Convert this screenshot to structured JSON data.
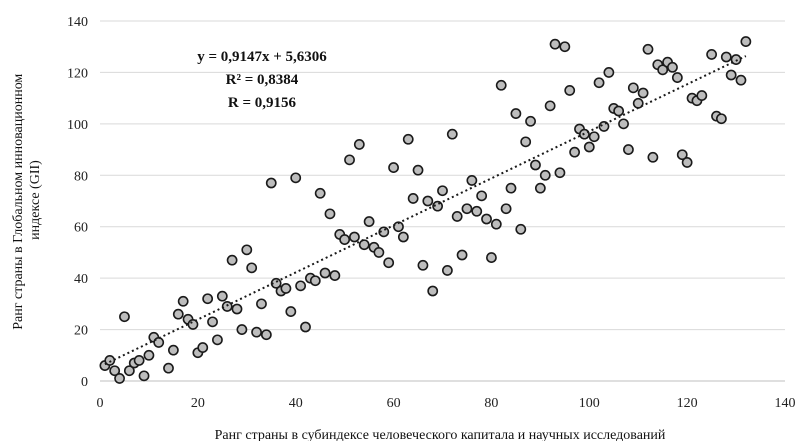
{
  "chart_data": {
    "type": "scatter",
    "xlabel": "Ранг страны в субиндексе человеческого капитала и научных исследований",
    "ylabel": "Ранг страны в Глобальном инновационном индексе (GII)",
    "xlim": [
      0,
      140
    ],
    "ylim": [
      0,
      140
    ],
    "xticks": [
      0,
      20,
      40,
      60,
      80,
      100,
      120,
      140
    ],
    "yticks": [
      0,
      20,
      40,
      60,
      80,
      100,
      120,
      140
    ],
    "grid": "horizontal",
    "trendline": {
      "slope": 0.9147,
      "intercept": 5.6306,
      "equation": "y = 0,9147x + 5,6306",
      "r2": "R² = 0,8384",
      "r": "R = 0,9156"
    },
    "points": [
      [
        1,
        6
      ],
      [
        2,
        8
      ],
      [
        3,
        4
      ],
      [
        4,
        1
      ],
      [
        5,
        25
      ],
      [
        6,
        4
      ],
      [
        7,
        7
      ],
      [
        8,
        8
      ],
      [
        9,
        2
      ],
      [
        10,
        10
      ],
      [
        11,
        17
      ],
      [
        12,
        15
      ],
      [
        14,
        5
      ],
      [
        15,
        12
      ],
      [
        16,
        26
      ],
      [
        17,
        31
      ],
      [
        18,
        24
      ],
      [
        19,
        22
      ],
      [
        20,
        11
      ],
      [
        21,
        13
      ],
      [
        22,
        32
      ],
      [
        23,
        23
      ],
      [
        24,
        16
      ],
      [
        25,
        33
      ],
      [
        26,
        29
      ],
      [
        27,
        47
      ],
      [
        28,
        28
      ],
      [
        29,
        20
      ],
      [
        30,
        51
      ],
      [
        31,
        44
      ],
      [
        32,
        19
      ],
      [
        33,
        30
      ],
      [
        34,
        18
      ],
      [
        35,
        77
      ],
      [
        36,
        38
      ],
      [
        37,
        35
      ],
      [
        38,
        36
      ],
      [
        39,
        27
      ],
      [
        40,
        79
      ],
      [
        41,
        37
      ],
      [
        42,
        21
      ],
      [
        43,
        40
      ],
      [
        44,
        39
      ],
      [
        45,
        73
      ],
      [
        46,
        42
      ],
      [
        47,
        65
      ],
      [
        48,
        41
      ],
      [
        49,
        57
      ],
      [
        50,
        55
      ],
      [
        51,
        86
      ],
      [
        52,
        56
      ],
      [
        53,
        92
      ],
      [
        54,
        53
      ],
      [
        55,
        62
      ],
      [
        56,
        52
      ],
      [
        57,
        50
      ],
      [
        58,
        58
      ],
      [
        59,
        46
      ],
      [
        60,
        83
      ],
      [
        61,
        60
      ],
      [
        62,
        56
      ],
      [
        63,
        94
      ],
      [
        64,
        71
      ],
      [
        65,
        82
      ],
      [
        66,
        45
      ],
      [
        67,
        70
      ],
      [
        68,
        35
      ],
      [
        69,
        68
      ],
      [
        70,
        74
      ],
      [
        71,
        43
      ],
      [
        72,
        96
      ],
      [
        73,
        64
      ],
      [
        74,
        49
      ],
      [
        75,
        67
      ],
      [
        76,
        78
      ],
      [
        77,
        66
      ],
      [
        78,
        72
      ],
      [
        79,
        63
      ],
      [
        80,
        48
      ],
      [
        81,
        61
      ],
      [
        82,
        115
      ],
      [
        83,
        67
      ],
      [
        84,
        75
      ],
      [
        85,
        104
      ],
      [
        86,
        59
      ],
      [
        87,
        93
      ],
      [
        88,
        101
      ],
      [
        89,
        84
      ],
      [
        90,
        75
      ],
      [
        91,
        80
      ],
      [
        92,
        107
      ],
      [
        93,
        131
      ],
      [
        94,
        81
      ],
      [
        95,
        130
      ],
      [
        96,
        113
      ],
      [
        97,
        89
      ],
      [
        98,
        98
      ],
      [
        99,
        96
      ],
      [
        100,
        91
      ],
      [
        101,
        95
      ],
      [
        102,
        116
      ],
      [
        103,
        99
      ],
      [
        104,
        120
      ],
      [
        105,
        106
      ],
      [
        106,
        105
      ],
      [
        107,
        100
      ],
      [
        108,
        90
      ],
      [
        109,
        114
      ],
      [
        110,
        108
      ],
      [
        111,
        112
      ],
      [
        112,
        129
      ],
      [
        113,
        87
      ],
      [
        114,
        123
      ],
      [
        115,
        121
      ],
      [
        116,
        124
      ],
      [
        117,
        122
      ],
      [
        118,
        118
      ],
      [
        119,
        88
      ],
      [
        120,
        85
      ],
      [
        121,
        110
      ],
      [
        122,
        109
      ],
      [
        123,
        111
      ],
      [
        125,
        127
      ],
      [
        126,
        103
      ],
      [
        127,
        102
      ],
      [
        128,
        126
      ],
      [
        129,
        119
      ],
      [
        130,
        125
      ],
      [
        131,
        117
      ],
      [
        132,
        132
      ]
    ]
  }
}
